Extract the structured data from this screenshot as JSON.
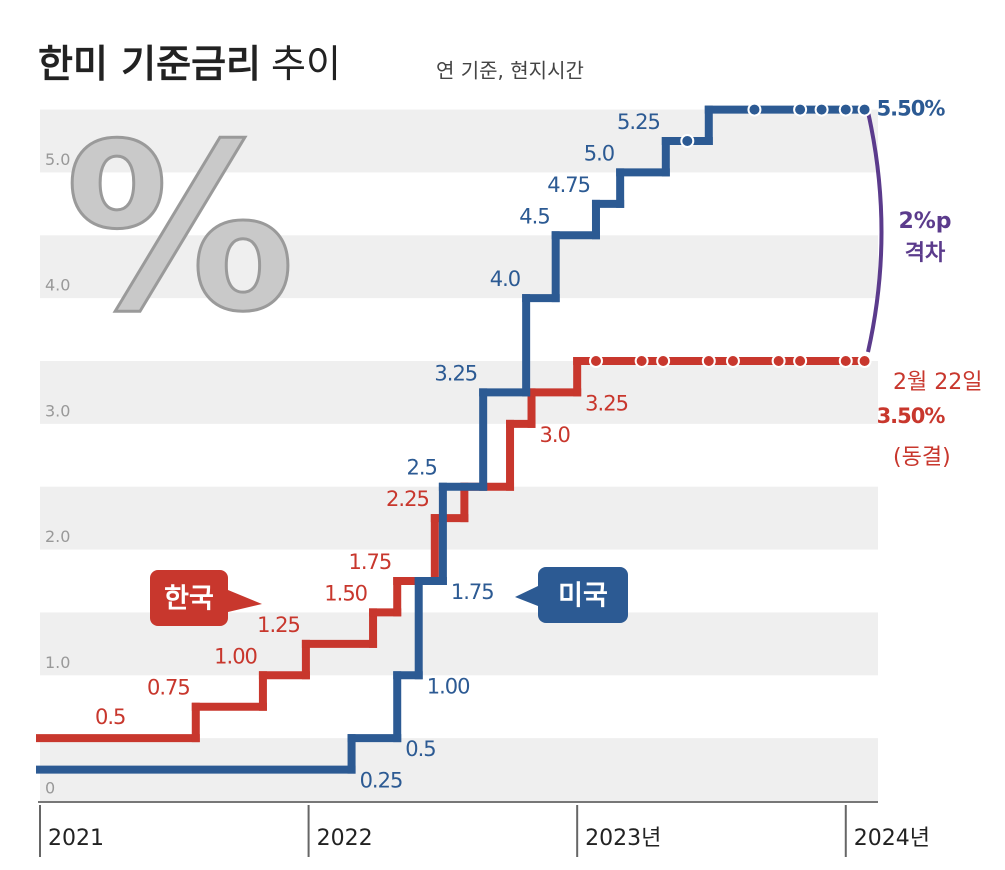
{
  "chart_data": {
    "type": "step",
    "title": [
      "한미 기준금리",
      "추이"
    ],
    "subtitle": "연 기준, 현지시간",
    "annotations": {
      "date": "2월 22일",
      "status": "(동결)",
      "gap": [
        "2%p",
        "격차"
      ]
    },
    "xlim": [
      2021,
      2024.12
    ],
    "xticks": [
      {
        "value": 2021,
        "label": "2021"
      },
      {
        "value": 2022,
        "label": "2022"
      },
      {
        "value": 2023,
        "label": "2023년"
      },
      {
        "value": 2024,
        "label": "2024년"
      }
    ],
    "ylim": [
      0,
      5.6
    ],
    "yticks": [
      0,
      {
        "value": 1,
        "label": "1.0"
      },
      {
        "value": 2,
        "label": "2.0"
      },
      {
        "value": 3,
        "label": "3.0"
      },
      {
        "value": 4,
        "label": "4.0"
      },
      {
        "value": 5,
        "label": "5.0"
      }
    ],
    "grid": "bands",
    "series": [
      {
        "name": "한국",
        "color": "#c8372d",
        "x": [
          2021,
          2021.58,
          2021.83,
          2021.99,
          2022.24,
          2022.33,
          2022.47,
          2022.58,
          2022.75,
          2022.83,
          2023.0,
          2024.07
        ],
        "values": [
          0.5,
          0.75,
          1,
          1.25,
          1.5,
          1.75,
          2.25,
          2.5,
          3,
          3.25,
          3.5,
          3.5
        ],
        "value_labels": [
          "0.5",
          "0.75",
          "1.00",
          "1.25",
          "1.50",
          "1.75",
          "2.25",
          null,
          "3.0",
          "3.25",
          null,
          "3.50%"
        ],
        "holds": [
          2023.07,
          2023.24,
          2023.32,
          2023.49,
          2023.58,
          2023.75,
          2023.83,
          2024.0,
          2024.07
        ]
      },
      {
        "name": "미국",
        "color": "#2c5a93",
        "x": [
          2021,
          2022.16,
          2022.33,
          2022.41,
          2022.5,
          2022.65,
          2022.81,
          2022.92,
          2023.07,
          2023.16,
          2023.33,
          2023.49,
          2024.07
        ],
        "values": [
          0.25,
          0.5,
          1,
          1.75,
          2.5,
          3.25,
          4,
          4.5,
          4.75,
          5,
          5.25,
          5.5,
          5.5
        ],
        "value_labels": [
          "0.25",
          "0.5",
          "1.00",
          "1.75",
          "2.5",
          "3.25",
          "4.0",
          "4.5",
          "4.75",
          "5.0",
          "5.25",
          null,
          "5.50%"
        ],
        "holds": [
          2023.41,
          2023.66,
          2023.83,
          2023.91,
          2024.0,
          2024.07
        ]
      }
    ]
  }
}
